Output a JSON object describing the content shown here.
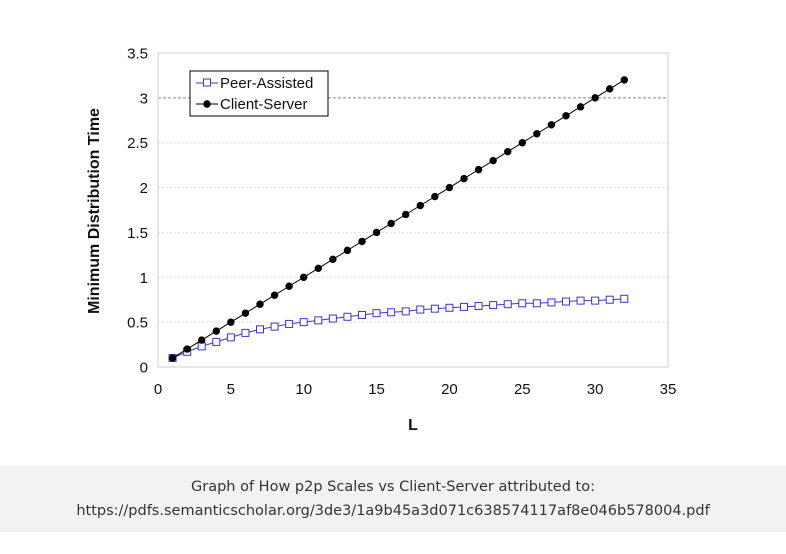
{
  "chart_data": {
    "type": "line",
    "title": "",
    "xlabel": "L",
    "ylabel": "Minimum Distribution Time",
    "xlim": [
      0,
      35
    ],
    "ylim": [
      0,
      3.5
    ],
    "xticks": [
      0,
      5,
      10,
      15,
      20,
      25,
      30,
      35
    ],
    "yticks": [
      0,
      0.5,
      1,
      1.5,
      2,
      2.5,
      3,
      3.5
    ],
    "ytick_labels": [
      "0",
      "0.5",
      "1",
      "1.5",
      "2",
      "2.5",
      "3",
      "3.5"
    ],
    "grid": "horizontal dotted",
    "reference_line": 3,
    "legend": "top-left",
    "series": [
      {
        "name": "Peer-Assisted",
        "color": "#3a35d8",
        "marker": "open-square",
        "x": [
          1,
          2,
          3,
          4,
          5,
          6,
          7,
          8,
          9,
          10,
          11,
          12,
          13,
          14,
          15,
          16,
          17,
          18,
          19,
          20,
          21,
          22,
          23,
          24,
          25,
          26,
          27,
          28,
          29,
          30,
          31,
          32
        ],
        "values": [
          0.1,
          0.17,
          0.23,
          0.28,
          0.33,
          0.38,
          0.42,
          0.45,
          0.48,
          0.5,
          0.52,
          0.54,
          0.56,
          0.58,
          0.6,
          0.61,
          0.62,
          0.64,
          0.65,
          0.66,
          0.67,
          0.68,
          0.69,
          0.7,
          0.71,
          0.71,
          0.72,
          0.73,
          0.74,
          0.74,
          0.75,
          0.76
        ]
      },
      {
        "name": "Client-Server",
        "color": "#000000",
        "marker": "filled-circle",
        "x": [
          1,
          2,
          3,
          4,
          5,
          6,
          7,
          8,
          9,
          10,
          11,
          12,
          13,
          14,
          15,
          16,
          17,
          18,
          19,
          20,
          21,
          22,
          23,
          24,
          25,
          26,
          27,
          28,
          29,
          30,
          31,
          32
        ],
        "values": [
          0.1,
          0.2,
          0.3,
          0.4,
          0.5,
          0.6,
          0.7,
          0.8,
          0.9,
          1.0,
          1.1,
          1.2,
          1.3,
          1.4,
          1.5,
          1.6,
          1.7,
          1.8,
          1.9,
          2.0,
          2.1,
          2.2,
          2.3,
          2.4,
          2.5,
          2.6,
          2.7,
          2.8,
          2.9,
          3.0,
          3.1,
          3.2
        ]
      }
    ]
  },
  "caption": {
    "line1": "Graph of How p2p Scales vs Client-Server attributed to:",
    "line2": "https://pdfs.semanticscholar.org/3de3/1a9b45a3d071c638574117af8e046b578004.pdf"
  }
}
